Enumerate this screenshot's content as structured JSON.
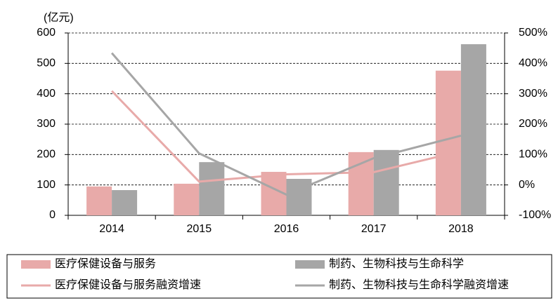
{
  "chart_data": {
    "type": "bar",
    "y_unit_label": "(亿元)",
    "categories": [
      "2014",
      "2015",
      "2016",
      "2017",
      "2018"
    ],
    "series": [
      {
        "name": "医疗保健设备与服务",
        "type": "bar",
        "color": "#e8aaa9",
        "values": [
          95,
          104,
          143,
          208,
          476
        ]
      },
      {
        "name": "制药、生物科技与生命科学",
        "type": "bar",
        "color": "#a6a6a6",
        "values": [
          83,
          175,
          120,
          215,
          563
        ]
      },
      {
        "name": "医疗保健设备与服务融资增速",
        "type": "line",
        "axis": "y2",
        "color": "#e8aaa9",
        "values": [
          309,
          11,
          35,
          42,
          111
        ]
      },
      {
        "name": "制药、生物科技与生命科学融资增速",
        "type": "line",
        "axis": "y2",
        "color": "#a6a6a6",
        "values": [
          434,
          104,
          -32,
          88,
          162
        ]
      }
    ],
    "ylim": [
      0,
      600
    ],
    "yticks": [
      0,
      100,
      200,
      300,
      400,
      500,
      600
    ],
    "y2lim": [
      -100,
      500
    ],
    "y2ticks": [
      {
        "value": -100,
        "label": "-100%"
      },
      {
        "value": 0,
        "label": "0%"
      },
      {
        "value": 100,
        "label": "100%"
      },
      {
        "value": 200,
        "label": "200%"
      },
      {
        "value": 300,
        "label": "300%"
      },
      {
        "value": 400,
        "label": "400%"
      },
      {
        "value": 500,
        "label": "500%"
      }
    ],
    "grid": true,
    "legend": "bottom"
  }
}
